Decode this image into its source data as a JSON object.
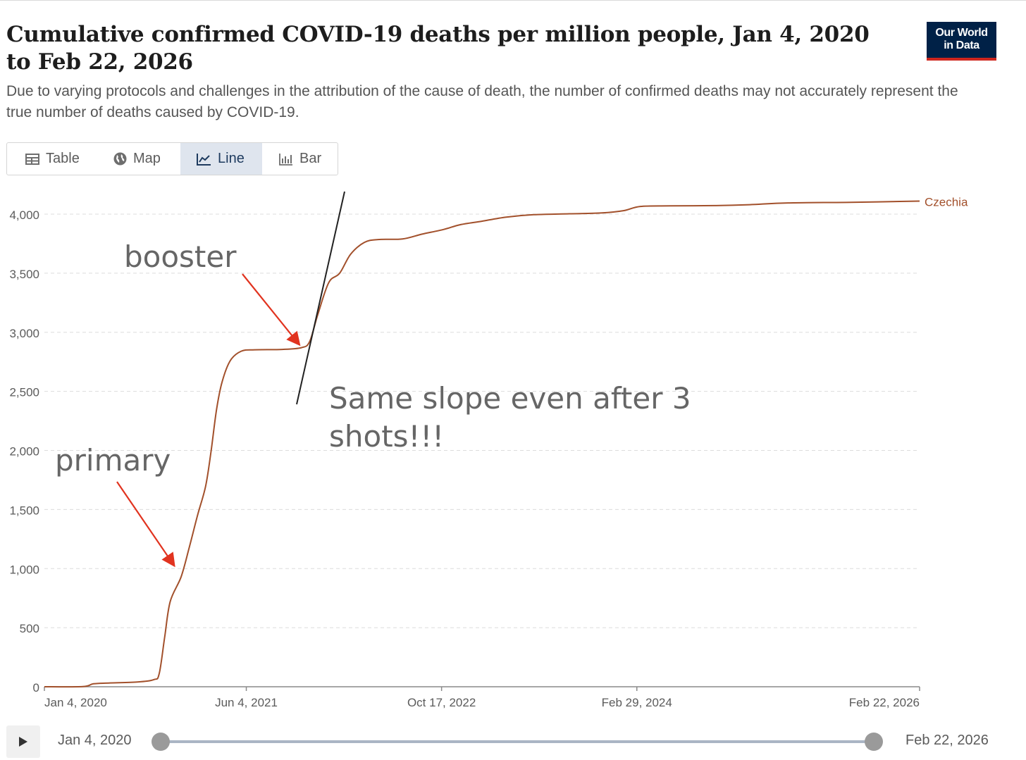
{
  "header": {
    "title": "Cumulative confirmed COVID-19 deaths per million people, Jan 4, 2020 to Feb 22, 2026",
    "subtitle": "Due to varying protocols and challenges in the attribution of the cause of death, the number of confirmed deaths may not accurately represent the true number of deaths caused by COVID-19.",
    "logo_line1": "Our World",
    "logo_line2": "in Data"
  },
  "tabs": [
    {
      "label": "Table",
      "icon": "table-icon"
    },
    {
      "label": "Map",
      "icon": "globe-icon"
    },
    {
      "label": "Line",
      "icon": "line-chart-icon",
      "active": true
    },
    {
      "label": "Bar",
      "icon": "bar-chart-icon"
    }
  ],
  "timeline": {
    "start_label": "Jan 4, 2020",
    "end_label": "Feb 22, 2026",
    "start_fraction": 0.0,
    "end_fraction": 1.0
  },
  "colors": {
    "series": "#a2502b",
    "arrow": "#e1331f",
    "grid": "#dcdcdc",
    "logo_bg": "#002147",
    "logo_accent": "#ce261e"
  },
  "chart_data": {
    "type": "line",
    "ylim": [
      0,
      4000
    ],
    "y_ticks": [
      0,
      500,
      1000,
      1500,
      2000,
      2500,
      3000,
      3500,
      4000
    ],
    "y_tick_labels": [
      "0",
      "500",
      "1,000",
      "1,500",
      "2,000",
      "2,500",
      "3,000",
      "3,500",
      "4,000"
    ],
    "x_range": [
      "2020-01-04",
      "2026-02-22"
    ],
    "x_ticks": [
      "2020-01-04",
      "2021-06-04",
      "2022-10-17",
      "2024-02-29",
      "2026-02-22"
    ],
    "x_tick_labels": [
      "Jan 4, 2020",
      "Jun 4, 2021",
      "Oct 17, 2022",
      "Feb 29, 2024",
      "Feb 22, 2026"
    ],
    "grid": "horizontal dashed",
    "series": [
      {
        "name": "Czechia",
        "points": [
          [
            "2020-01-04",
            0
          ],
          [
            "2020-04-11",
            1
          ],
          [
            "2020-05-09",
            25
          ],
          [
            "2020-06-20",
            32
          ],
          [
            "2020-08-29",
            40
          ],
          [
            "2020-10-10",
            60
          ],
          [
            "2020-10-24",
            110
          ],
          [
            "2020-11-07",
            420
          ],
          [
            "2020-11-21",
            720
          ],
          [
            "2020-12-19",
            930
          ],
          [
            "2021-01-09",
            1180
          ],
          [
            "2021-01-30",
            1450
          ],
          [
            "2021-02-20",
            1700
          ],
          [
            "2021-03-06",
            2000
          ],
          [
            "2021-03-20",
            2350
          ],
          [
            "2021-04-03",
            2580
          ],
          [
            "2021-04-24",
            2760
          ],
          [
            "2021-05-22",
            2840
          ],
          [
            "2021-06-26",
            2852
          ],
          [
            "2021-09-04",
            2855
          ],
          [
            "2021-10-23",
            2870
          ],
          [
            "2021-11-13",
            2920
          ],
          [
            "2021-12-04",
            3150
          ],
          [
            "2022-01-01",
            3420
          ],
          [
            "2022-01-29",
            3500
          ],
          [
            "2022-02-26",
            3660
          ],
          [
            "2022-04-02",
            3760
          ],
          [
            "2022-05-07",
            3785
          ],
          [
            "2022-07-09",
            3790
          ],
          [
            "2022-08-27",
            3830
          ],
          [
            "2022-10-22",
            3870
          ],
          [
            "2022-12-03",
            3910
          ],
          [
            "2023-01-28",
            3940
          ],
          [
            "2023-04-01",
            3975
          ],
          [
            "2023-06-10",
            3995
          ],
          [
            "2023-09-09",
            4003
          ],
          [
            "2023-12-02",
            4010
          ],
          [
            "2024-01-27",
            4030
          ],
          [
            "2024-03-09",
            4065
          ],
          [
            "2024-05-25",
            4070
          ],
          [
            "2024-09-14",
            4072
          ],
          [
            "2024-12-14",
            4080
          ],
          [
            "2025-03-22",
            4095
          ],
          [
            "2025-08-30",
            4100
          ],
          [
            "2026-02-22",
            4110
          ]
        ]
      }
    ],
    "annotations": [
      {
        "text": "booster",
        "target": [
          "2021-10-23",
          2880
        ]
      },
      {
        "text": "primary",
        "target": [
          "2020-12-05",
          1010
        ]
      },
      {
        "text": "Same slope even after 3 shots!!!"
      }
    ]
  }
}
